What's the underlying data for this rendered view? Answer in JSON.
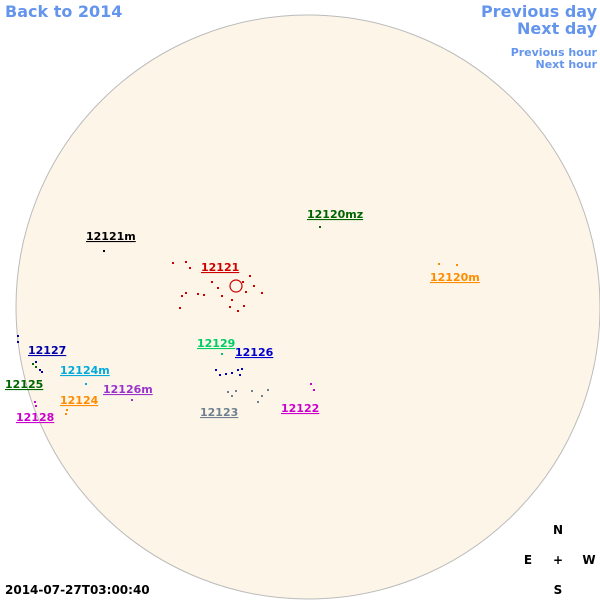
{
  "nav": {
    "back": "Back to 2014",
    "previous_day": "Previous day",
    "next_day": "Next day",
    "previous_hour": "Previous hour",
    "next_hour": "Next hour"
  },
  "regions": [
    {
      "label": "12120mz",
      "color": "#006400"
    },
    {
      "label": "12121m",
      "color": "#000000"
    },
    {
      "label": "12121",
      "color": "#cc0000"
    },
    {
      "label": "12120m",
      "color": "#ff8c00"
    },
    {
      "label": "12129",
      "color": "#00cc66"
    },
    {
      "label": "12126",
      "color": "#0000cc"
    },
    {
      "label": "12127",
      "color": "#0000aa"
    },
    {
      "label": "12124m",
      "color": "#00aadd"
    },
    {
      "label": "12125",
      "color": "#006400"
    },
    {
      "label": "12126m",
      "color": "#9933cc"
    },
    {
      "label": "12124",
      "color": "#ff8c00"
    },
    {
      "label": "12123",
      "color": "#708090"
    },
    {
      "label": "12122",
      "color": "#cc00cc"
    },
    {
      "label": "12128",
      "color": "#cc00cc"
    }
  ],
  "compass": {
    "north": "N",
    "east": "E",
    "center": "+",
    "west": "W",
    "south": "S"
  },
  "timestamp": "2014-07-27T03:00:40"
}
